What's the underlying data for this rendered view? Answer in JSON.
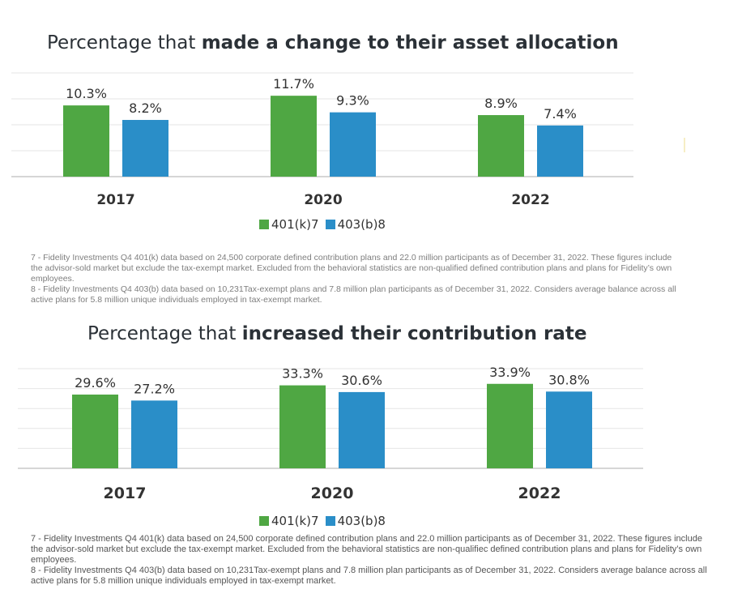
{
  "charts": [
    {
      "title_plain": "Percentage that ",
      "title_bold": "made a change to their asset allocation",
      "legend": [
        "401(k)7",
        "403(b)8"
      ],
      "footnotes": [
        "7 - Fidelity Investments Q4 401(k) data based on 24,500 corporate defined contribution plans and 22.0 million participants as of December 31, 2022. These figures include the advisor-sold market but exclude the tax-exempt market. Excluded from the behavioral statistics are non-qualified defined contribution plans and plans for Fidelity’s own employees.",
        "8 - Fidelity Investments Q4 403(b) data based on 10,231Tax-exempt plans and 7.8 million plan participants as of December 31, 2022. Considers average balance across all active plans for 5.8 million unique individuals employed in tax-exempt market."
      ]
    },
    {
      "title_plain": "Percentage that ",
      "title_bold": "increased their contribution rate",
      "legend": [
        "401(k)7",
        "403(b)8"
      ],
      "footnotes": [
        "7 - Fidelity Investments Q4 401(k) data based on 24,500 corporate defined contribution plans and 22.0 million participants as of December 31, 2022. These figures include the advisor-sold market but exclude the tax-exempt market. Excluded from the behavioral statistics are non-qualifiec defined contribution plans and plans for Fidelity’s own employees.",
        "8 - Fidelity Investments Q4 403(b) data based on 10,231Tax-exempt plans and 7.8 million plan participants as of December 31, 2022. Considers average balance across all active plans for 5.8 million unique individuals employed in tax-exempt market."
      ]
    }
  ],
  "colors": {
    "series1": "#4fa743",
    "series2": "#2a8ec8",
    "grid": "#e6e6e6",
    "axis": "#c8c8c8"
  },
  "chart_data": [
    {
      "type": "bar",
      "title": "Percentage that made a change to their asset allocation",
      "categories": [
        "2017",
        "2020",
        "2022"
      ],
      "series": [
        {
          "name": "401(k)7",
          "values": [
            10.3,
            11.7,
            8.9
          ],
          "labels": [
            "10.3%",
            "11.7%",
            "8.9%"
          ]
        },
        {
          "name": "403(b)8",
          "values": [
            8.2,
            9.3,
            7.4
          ],
          "labels": [
            "8.2%",
            "9.3%",
            "7.4%"
          ]
        }
      ],
      "ylim": [
        0,
        15
      ],
      "grid": true,
      "legend_position": "bottom"
    },
    {
      "type": "bar",
      "title": "Percentage that increased their contribution rate",
      "categories": [
        "2017",
        "2020",
        "2022"
      ],
      "series": [
        {
          "name": "401(k)7",
          "values": [
            29.6,
            33.3,
            33.9
          ],
          "labels": [
            "29.6%",
            "33.3%",
            "33.9%"
          ]
        },
        {
          "name": "403(b)8",
          "values": [
            27.2,
            30.6,
            30.8
          ],
          "labels": [
            "27.2%",
            "30.6%",
            "30.8%"
          ]
        }
      ],
      "ylim": [
        0,
        40
      ],
      "grid": true,
      "legend_position": "bottom"
    }
  ]
}
